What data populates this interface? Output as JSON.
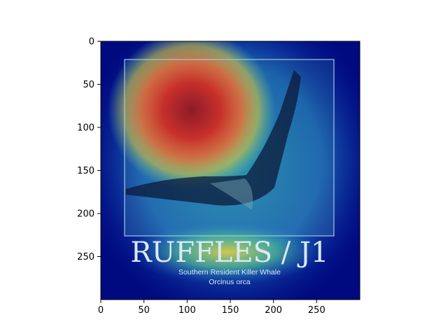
{
  "chart_data": {
    "type": "heatmap",
    "title": "",
    "xlabel": "",
    "ylabel": "",
    "xlim": [
      0,
      300
    ],
    "ylim": [
      300,
      0
    ],
    "x_ticks": [
      0,
      50,
      100,
      150,
      200,
      250
    ],
    "y_ticks": [
      0,
      50,
      100,
      150,
      200,
      250
    ],
    "colormap": "jet",
    "overlay": "saliency heatmap over photo",
    "hotspot": {
      "x": 105,
      "y": 80
    },
    "image_text": {
      "title": "RUFFLES / J1",
      "subtitle": "Southern Resident Killer Whale",
      "species": "Orcinus orca"
    }
  },
  "colors": {
    "background": "#000a80",
    "hot": "#b8232c",
    "warm": "#f0d030",
    "cool": "#2fa3b3",
    "whale": "#0c1a3a",
    "frame": "#a0c8d8"
  }
}
